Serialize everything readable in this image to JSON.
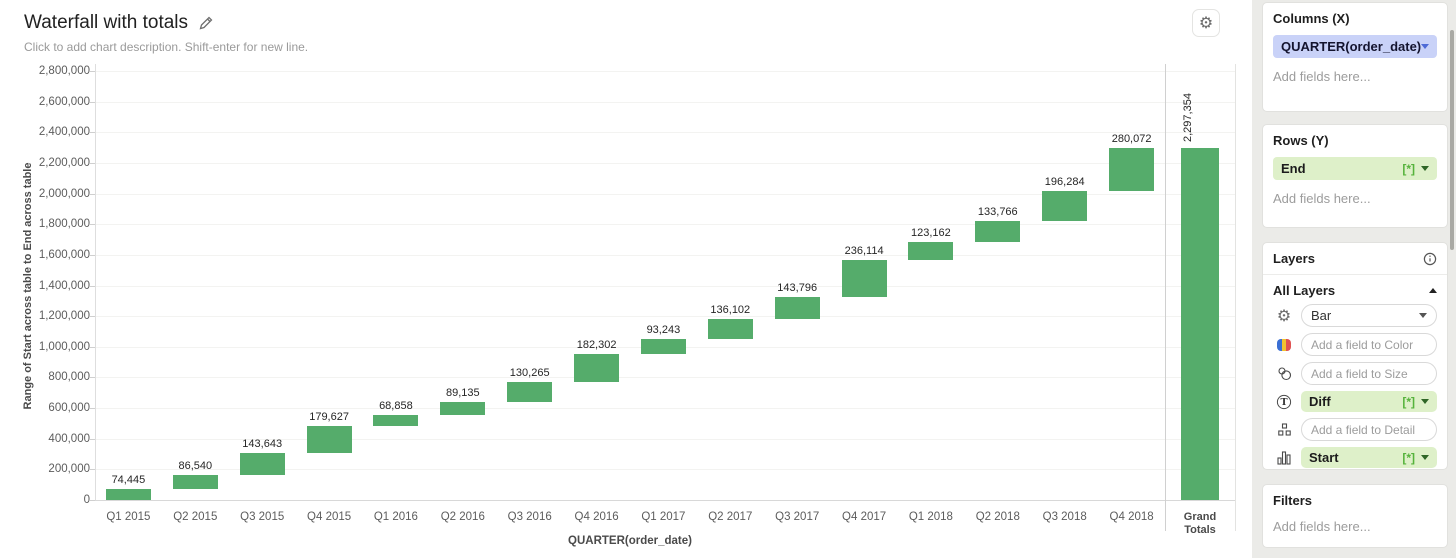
{
  "header": {
    "title": "Waterfall with totals",
    "subtitle": "Click to add chart description. Shift-enter for new line."
  },
  "icons": {
    "gear": "⚙"
  },
  "colors": {
    "bar_green": "#55ac6b",
    "pill_blue": "#c9d2f8",
    "pill_green": "#def0c9",
    "badge_green": "#56b33c"
  },
  "chart_data": {
    "type": "bar",
    "subtype": "waterfall",
    "categories": [
      "Q1 2015",
      "Q2 2015",
      "Q3 2015",
      "Q4 2015",
      "Q1 2016",
      "Q2 2016",
      "Q3 2016",
      "Q4 2016",
      "Q1 2017",
      "Q2 2017",
      "Q3 2017",
      "Q4 2017",
      "Q1 2018",
      "Q2 2018",
      "Q3 2018",
      "Q4 2018"
    ],
    "values": [
      74445,
      86540,
      143643,
      179627,
      68858,
      89135,
      130265,
      182302,
      93243,
      136102,
      143796,
      236114,
      123162,
      133766,
      196284,
      280072
    ],
    "grand_total": {
      "label": "Grand Totals",
      "value": 2297354
    },
    "xlabel": "QUARTER(order_date)",
    "ylabel": "Range of Start across table to End across table",
    "ylim": [
      0,
      2800000
    ],
    "ytick_step": 200000,
    "grid": true,
    "bar_color": "#55ac6b",
    "legend": "none"
  },
  "panel": {
    "columns": {
      "title": "Columns (X)",
      "pill": "QUARTER(order_date)",
      "placeholder": "Add fields here..."
    },
    "rows": {
      "title": "Rows (Y)",
      "pill": "End",
      "badge": "[*]",
      "placeholder": "Add fields here..."
    },
    "layers": {
      "title": "Layers",
      "all_layers": "All Layers",
      "mark_type": "Bar",
      "color_placeholder": "Add a field to Color",
      "size_placeholder": "Add a field to Size",
      "text_pill": "Diff",
      "text_badge": "[*]",
      "detail_placeholder": "Add a field to Detail",
      "tooltip_pill": "Start",
      "tooltip_badge": "[*]"
    },
    "filters": {
      "title": "Filters",
      "placeholder": "Add fields here..."
    }
  }
}
